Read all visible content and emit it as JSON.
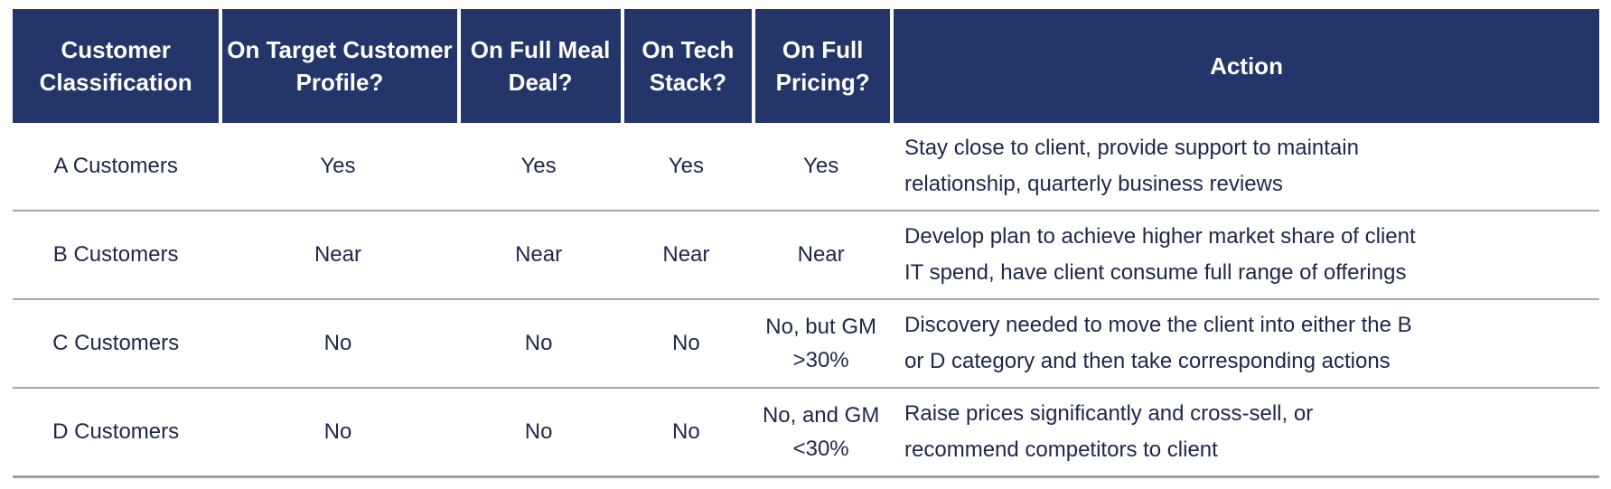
{
  "table": {
    "columns": [
      "Customer Classification",
      "On Target Customer Profile?",
      "On Full Meal Deal?",
      "On Tech Stack?",
      "On Full Pricing?",
      "Action"
    ],
    "rows": [
      {
        "cells": [
          "A Customers",
          "Yes",
          "Yes",
          "Yes",
          "Yes"
        ],
        "action_lines": [
          "Stay close to client, provide support to maintain",
          "relationship, quarterly business reviews"
        ]
      },
      {
        "cells": [
          "B Customers",
          "Near",
          "Near",
          "Near",
          "Near"
        ],
        "action_lines": [
          "Develop plan to achieve higher market share of client",
          "IT spend, have client consume full range of offerings"
        ]
      },
      {
        "cells": [
          "C Customers",
          "No",
          "No",
          "No",
          "No, but GM >30%"
        ],
        "action_lines": [
          "Discovery needed to move the client into either the B",
          "or D category and then take corresponding actions"
        ]
      },
      {
        "cells": [
          "D Customers",
          "No",
          "No",
          "No",
          "No, and GM <30%"
        ],
        "action_lines": [
          "Raise prices significantly and cross-sell, or",
          "recommend competitors to client"
        ]
      }
    ]
  },
  "colors": {
    "header_bg": "#24356A",
    "header_text": "#FFFFFF",
    "body_text": "#20284A",
    "separator": "#A6A6A6"
  }
}
